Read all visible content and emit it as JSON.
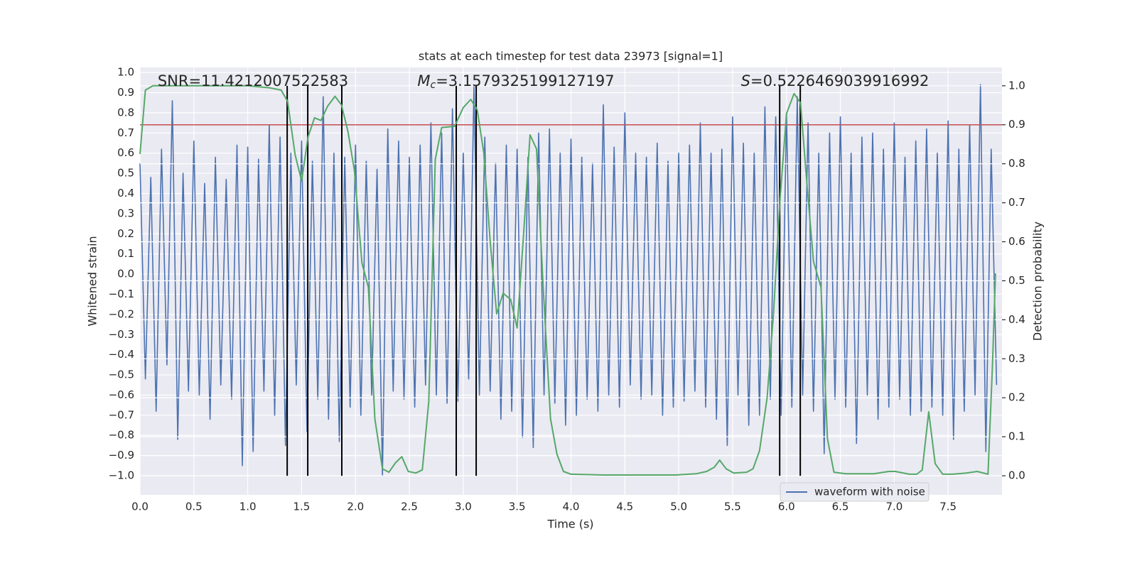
{
  "chart_data": {
    "type": "line",
    "title": "stats at each timestep for test data 23973 [signal=1]",
    "x_label": "Time (s)",
    "y_label": "Whitened strain",
    "y2_label": "Detection probability",
    "annotations": [
      {
        "text": "SNR=11.4212007522583"
      },
      {
        "symbol": "M",
        "subscript": "c",
        "text": "=3.1579325199127197"
      },
      {
        "symbol": "S",
        "text": "=0.5226469039916992"
      }
    ],
    "xlim": [
      0,
      8.0
    ],
    "ylim": [
      -1.095,
      1.025
    ],
    "y2lim": [
      -0.049,
      1.047
    ],
    "xticks": [
      {
        "value": 0,
        "label": "0.0"
      },
      0.5,
      {
        "value": 1,
        "label": "1.0"
      },
      1.5,
      {
        "value": 2,
        "label": "2.0"
      },
      2.5,
      {
        "value": 3,
        "label": "3.0"
      },
      3.5,
      {
        "value": 4,
        "label": "4.0"
      },
      4.5,
      {
        "value": 5,
        "label": "5.0"
      },
      5.5,
      {
        "value": 6,
        "label": "6.0"
      },
      6.5,
      {
        "value": 7,
        "label": "7.0"
      },
      7.5
    ],
    "yticks": [
      {
        "value": -1,
        "label": "−1.0"
      },
      {
        "value": -0.9,
        "label": "−0.9"
      },
      {
        "value": -0.8,
        "label": "−0.8"
      },
      {
        "value": -0.7,
        "label": "−0.7"
      },
      {
        "value": -0.6,
        "label": "−0.6"
      },
      {
        "value": -0.5,
        "label": "−0.5"
      },
      {
        "value": -0.4,
        "label": "−0.4"
      },
      {
        "value": -0.3,
        "label": "−0.3"
      },
      {
        "value": -0.2,
        "label": "−0.2"
      },
      {
        "value": -0.1,
        "label": "−0.1"
      },
      {
        "value": 0,
        "label": "0.0"
      },
      0.1,
      0.2,
      0.3,
      0.4,
      0.5,
      0.6,
      0.7,
      0.8,
      0.9,
      {
        "value": 1,
        "label": "1.0"
      }
    ],
    "y2ticks": [
      {
        "value": 0,
        "label": "0.0"
      },
      0.1,
      0.2,
      0.3,
      0.4,
      0.5,
      0.6,
      0.7,
      0.8,
      0.9,
      {
        "value": 1,
        "label": "1.0"
      }
    ],
    "grid": true,
    "legend": "lower right",
    "series": [
      {
        "name": "waveform with noise",
        "color": "#4c72b0",
        "x": [
          0,
          0.05,
          0.1,
          0.15,
          0.2,
          0.25,
          0.3,
          0.35,
          0.4,
          0.45,
          0.5,
          0.55,
          0.6,
          0.65,
          0.7,
          0.75,
          0.8,
          0.85,
          0.9,
          0.95,
          1,
          1.05,
          1.1,
          1.15,
          1.2,
          1.25,
          1.3,
          1.35,
          1.4,
          1.45,
          1.5,
          1.55,
          1.6,
          1.65,
          1.7,
          1.75,
          1.8,
          1.85,
          1.9,
          1.95,
          2,
          2.05,
          2.1,
          2.15,
          2.2,
          2.25,
          2.3,
          2.35,
          2.4,
          2.45,
          2.5,
          2.55,
          2.6,
          2.65,
          2.7,
          2.75,
          2.8,
          2.85,
          2.9,
          2.95,
          3,
          3.05,
          3.1,
          3.15,
          3.2,
          3.25,
          3.3,
          3.35,
          3.4,
          3.45,
          3.5,
          3.55,
          3.6,
          3.65,
          3.7,
          3.75,
          3.8,
          3.85,
          3.9,
          3.95,
          4,
          4.05,
          4.1,
          4.15,
          4.2,
          4.25,
          4.3,
          4.35,
          4.4,
          4.45,
          4.5,
          4.55,
          4.6,
          4.65,
          4.7,
          4.75,
          4.8,
          4.85,
          4.9,
          4.95,
          5,
          5.05,
          5.1,
          5.15,
          5.2,
          5.25,
          5.3,
          5.35,
          5.4,
          5.45,
          5.5,
          5.55,
          5.6,
          5.65,
          5.7,
          5.75,
          5.8,
          5.85,
          5.9,
          5.95,
          6,
          6.05,
          6.1,
          6.15,
          6.2,
          6.25,
          6.3,
          6.35,
          6.4,
          6.45,
          6.5,
          6.55,
          6.6,
          6.65,
          6.7,
          6.75,
          6.8,
          6.85,
          6.9,
          6.95,
          7,
          7.05,
          7.1,
          7.15,
          7.2,
          7.25,
          7.3,
          7.35,
          7.4,
          7.45,
          7.5,
          7.55,
          7.6,
          7.65,
          7.7,
          7.75,
          7.8,
          7.85,
          7.9,
          7.95
        ],
        "values": [
          0.55,
          -0.52,
          0.48,
          -0.68,
          0.62,
          -0.45,
          0.86,
          -0.82,
          0.5,
          -0.58,
          0.66,
          -0.6,
          0.45,
          -0.72,
          0.58,
          -0.55,
          0.47,
          -0.62,
          0.64,
          -0.95,
          0.63,
          -0.88,
          0.57,
          -0.58,
          0.74,
          -0.7,
          0.68,
          -0.85,
          0.6,
          -0.55,
          0.66,
          -0.78,
          0.56,
          -0.62,
          0.88,
          -0.72,
          0.6,
          -0.83,
          0.58,
          -0.66,
          0.64,
          -0.7,
          0.56,
          -0.6,
          0.52,
          -1.0,
          0.72,
          -0.58,
          0.66,
          -0.62,
          0.58,
          -0.66,
          0.64,
          -0.55,
          0.75,
          -0.6,
          0.7,
          -0.64,
          0.82,
          -0.63,
          0.6,
          -0.52,
          0.93,
          -0.6,
          0.68,
          -0.58,
          0.55,
          -0.72,
          0.64,
          -0.68,
          0.62,
          -0.81,
          0.58,
          -0.86,
          0.7,
          -0.6,
          0.72,
          -0.64,
          0.6,
          -0.75,
          0.67,
          -0.7,
          0.58,
          -0.62,
          0.55,
          -0.68,
          0.84,
          -0.6,
          0.63,
          -0.66,
          0.8,
          -0.55,
          0.6,
          -0.62,
          0.58,
          -0.6,
          0.65,
          -0.7,
          0.56,
          -0.66,
          0.6,
          -0.63,
          0.64,
          -0.58,
          0.75,
          -0.66,
          0.6,
          -0.72,
          0.62,
          -0.85,
          0.78,
          -0.6,
          0.65,
          -0.75,
          0.6,
          -0.7,
          0.83,
          -0.62,
          0.78,
          -0.7,
          0.8,
          -0.66,
          0.88,
          -0.6,
          0.75,
          -0.68,
          0.6,
          -0.89,
          0.7,
          -0.62,
          0.78,
          -0.66,
          0.6,
          -0.84,
          0.68,
          -0.6,
          0.7,
          -0.72,
          0.62,
          -0.66,
          0.75,
          -0.62,
          0.58,
          -0.7,
          0.66,
          -0.68,
          0.72,
          -0.66,
          0.6,
          -0.7,
          0.76,
          -0.82,
          0.62,
          -0.68,
          0.74,
          -0.6,
          0.94,
          -0.88,
          0.62,
          -0.55
        ]
      },
      {
        "color": "#55a868",
        "axis": "y2",
        "x": [
          0,
          0.05,
          0.12,
          0.68,
          1.0,
          1.2,
          1.31,
          1.37,
          1.44,
          1.5,
          1.56,
          1.62,
          1.68,
          1.74,
          1.81,
          1.87,
          1.93,
          1.99,
          2.06,
          2.12,
          2.18,
          2.25,
          2.31,
          2.37,
          2.43,
          2.49,
          2.56,
          2.62,
          2.68,
          2.74,
          2.8,
          2.92,
          3.0,
          3.07,
          3.13,
          3.19,
          3.25,
          3.31,
          3.37,
          3.44,
          3.5,
          3.56,
          3.62,
          3.68,
          3.74,
          3.81,
          3.87,
          3.93,
          4.0,
          4.3,
          4.64,
          4.97,
          5.16,
          5.26,
          5.33,
          5.38,
          5.44,
          5.51,
          5.63,
          5.69,
          5.75,
          5.82,
          5.88,
          5.94,
          6.0,
          6.07,
          6.13,
          6.19,
          6.25,
          6.32,
          6.38,
          6.44,
          6.55,
          6.81,
          6.95,
          7.01,
          7.14,
          7.21,
          7.26,
          7.32,
          7.38,
          7.45,
          7.54,
          7.67,
          7.77,
          7.87,
          7.91,
          7.94
        ],
        "values": [
          0.825,
          0.989,
          1.0,
          1.0,
          1.0,
          0.995,
          0.989,
          0.96,
          0.823,
          0.756,
          0.869,
          0.918,
          0.911,
          0.947,
          0.973,
          0.951,
          0.883,
          0.783,
          0.546,
          0.483,
          0.146,
          0.018,
          0.009,
          0.033,
          0.049,
          0.011,
          0.007,
          0.015,
          0.191,
          0.811,
          0.893,
          0.896,
          0.944,
          0.965,
          0.938,
          0.829,
          0.601,
          0.415,
          0.468,
          0.452,
          0.379,
          0.619,
          0.874,
          0.838,
          0.492,
          0.146,
          0.055,
          0.011,
          0.004,
          0.002,
          0.002,
          0.002,
          0.005,
          0.011,
          0.022,
          0.04,
          0.018,
          0.007,
          0.009,
          0.018,
          0.064,
          0.2,
          0.419,
          0.71,
          0.929,
          0.98,
          0.956,
          0.747,
          0.55,
          0.483,
          0.095,
          0.009,
          0.005,
          0.005,
          0.011,
          0.011,
          0.004,
          0.004,
          0.015,
          0.164,
          0.031,
          0.004,
          0.004,
          0.007,
          0.011,
          0.004,
          0.273,
          0.519
        ]
      }
    ],
    "threshold": {
      "y2": 0.9,
      "color": "#c44e52"
    },
    "vlines": {
      "x": [
        1.366,
        1.557,
        1.873,
        2.935,
        3.12,
        5.937,
        6.128
      ],
      "y2": [
        0,
        1
      ],
      "color": "#000000"
    }
  }
}
